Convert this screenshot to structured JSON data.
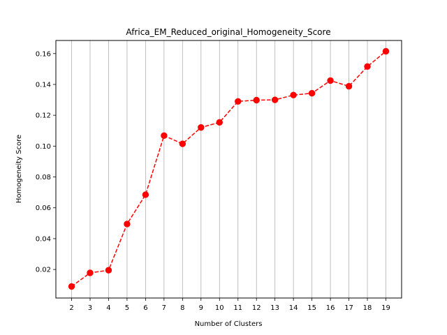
{
  "chart_data": {
    "type": "line",
    "title": "Africa_EM_Reduced_original_Homogeneity_Score",
    "xlabel": "Number of Clusters",
    "ylabel": "Homogeneity Score",
    "x": [
      2,
      3,
      4,
      5,
      6,
      7,
      8,
      9,
      10,
      11,
      12,
      13,
      14,
      15,
      16,
      17,
      18,
      19
    ],
    "y_ticks": [
      "0.02",
      "0.04",
      "0.06",
      "0.08",
      "0.10",
      "0.12",
      "0.14",
      "0.16"
    ],
    "ylim": [
      0.0015,
      0.1685
    ],
    "xlim": [
      1.15,
      19.85
    ],
    "grid": "vertical",
    "series": [
      {
        "color": "#ff0000",
        "line_style": "dashed",
        "marker": "circle",
        "values": [
          0.009,
          0.0178,
          0.0195,
          0.0495,
          0.0685,
          0.1068,
          0.1015,
          0.1121,
          0.1154,
          0.129,
          0.1298,
          0.13,
          0.1331,
          0.1343,
          0.1425,
          0.1388,
          0.1516,
          0.1615
        ]
      }
    ]
  }
}
